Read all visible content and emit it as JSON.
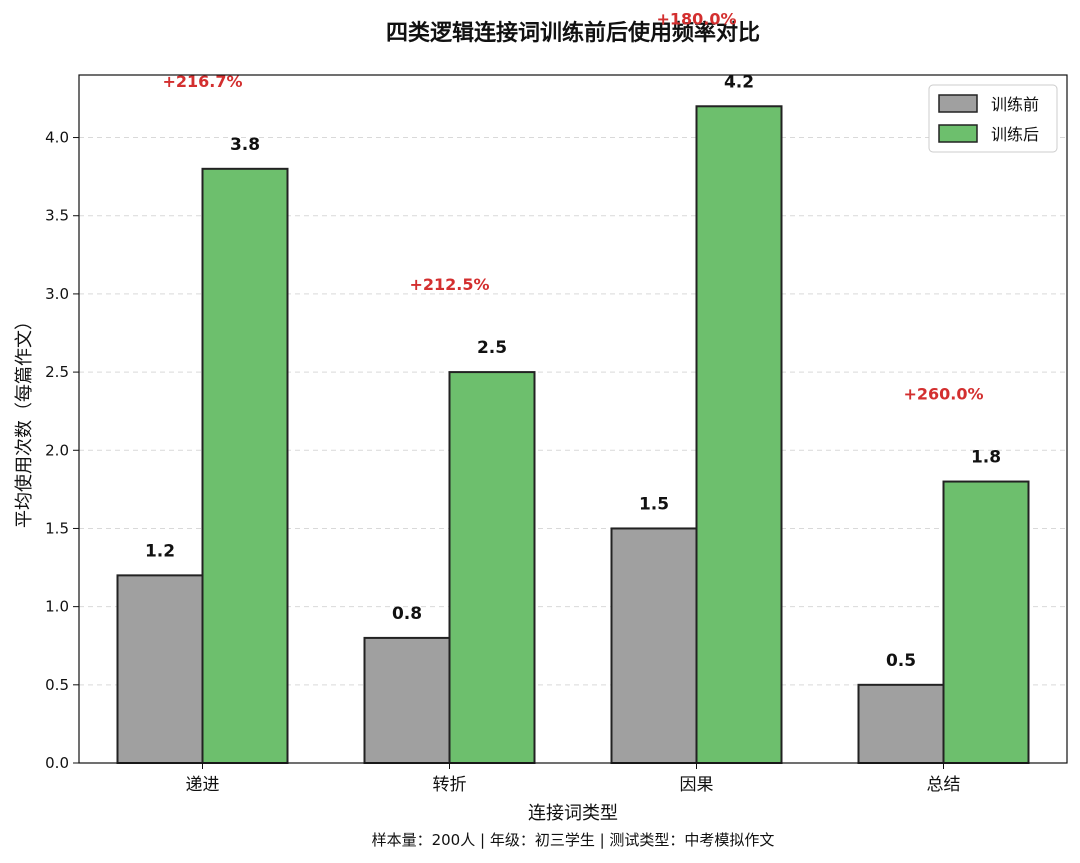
{
  "chart_data": {
    "type": "bar",
    "title": "四类逻辑连接词训练前后使用频率对比",
    "xlabel": "连接词类型",
    "ylabel": "平均使用次数（每篇作文）",
    "categories": [
      "递进",
      "转折",
      "因果",
      "总结"
    ],
    "series": [
      {
        "name": "训练前",
        "values": [
          1.2,
          0.8,
          1.5,
          0.5
        ],
        "color": "#a0a0a0"
      },
      {
        "name": "训练后",
        "values": [
          3.8,
          2.5,
          4.2,
          1.8
        ],
        "color": "#6dbf6d"
      }
    ],
    "value_labels": [
      [
        "1.2",
        "0.8",
        "1.5",
        "0.5"
      ],
      [
        "3.8",
        "2.5",
        "4.2",
        "1.8"
      ]
    ],
    "change_labels": [
      "+216.7%",
      "+212.5%",
      "+180.0%",
      "+260.0%"
    ],
    "change_color": "#d32f2f",
    "ylim": [
      0,
      4.4
    ],
    "yticks": [
      "0.0",
      "0.5",
      "1.0",
      "1.5",
      "2.0",
      "2.5",
      "3.0",
      "3.5",
      "4.0"
    ],
    "grid": true,
    "legend_position": "top-right",
    "footnote": "样本量：200人 | 年级：初三学生 | 测试类型：中考模拟作文"
  }
}
